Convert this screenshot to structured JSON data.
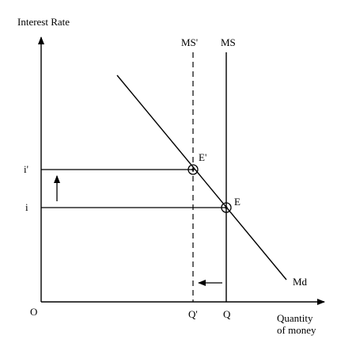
{
  "axes": {
    "y_label": "Interest Rate",
    "x_label_line1": "Quantity",
    "x_label_line2": "of money",
    "origin_label": "O"
  },
  "curves": {
    "money_supply_new": "MS'",
    "money_supply": "MS",
    "money_demand": "Md"
  },
  "points": {
    "equilibrium_new": "E'",
    "equilibrium": "E"
  },
  "levels": {
    "rate_new": "i'",
    "rate": "i",
    "quantity_new": "Q'",
    "quantity": "Q"
  }
}
